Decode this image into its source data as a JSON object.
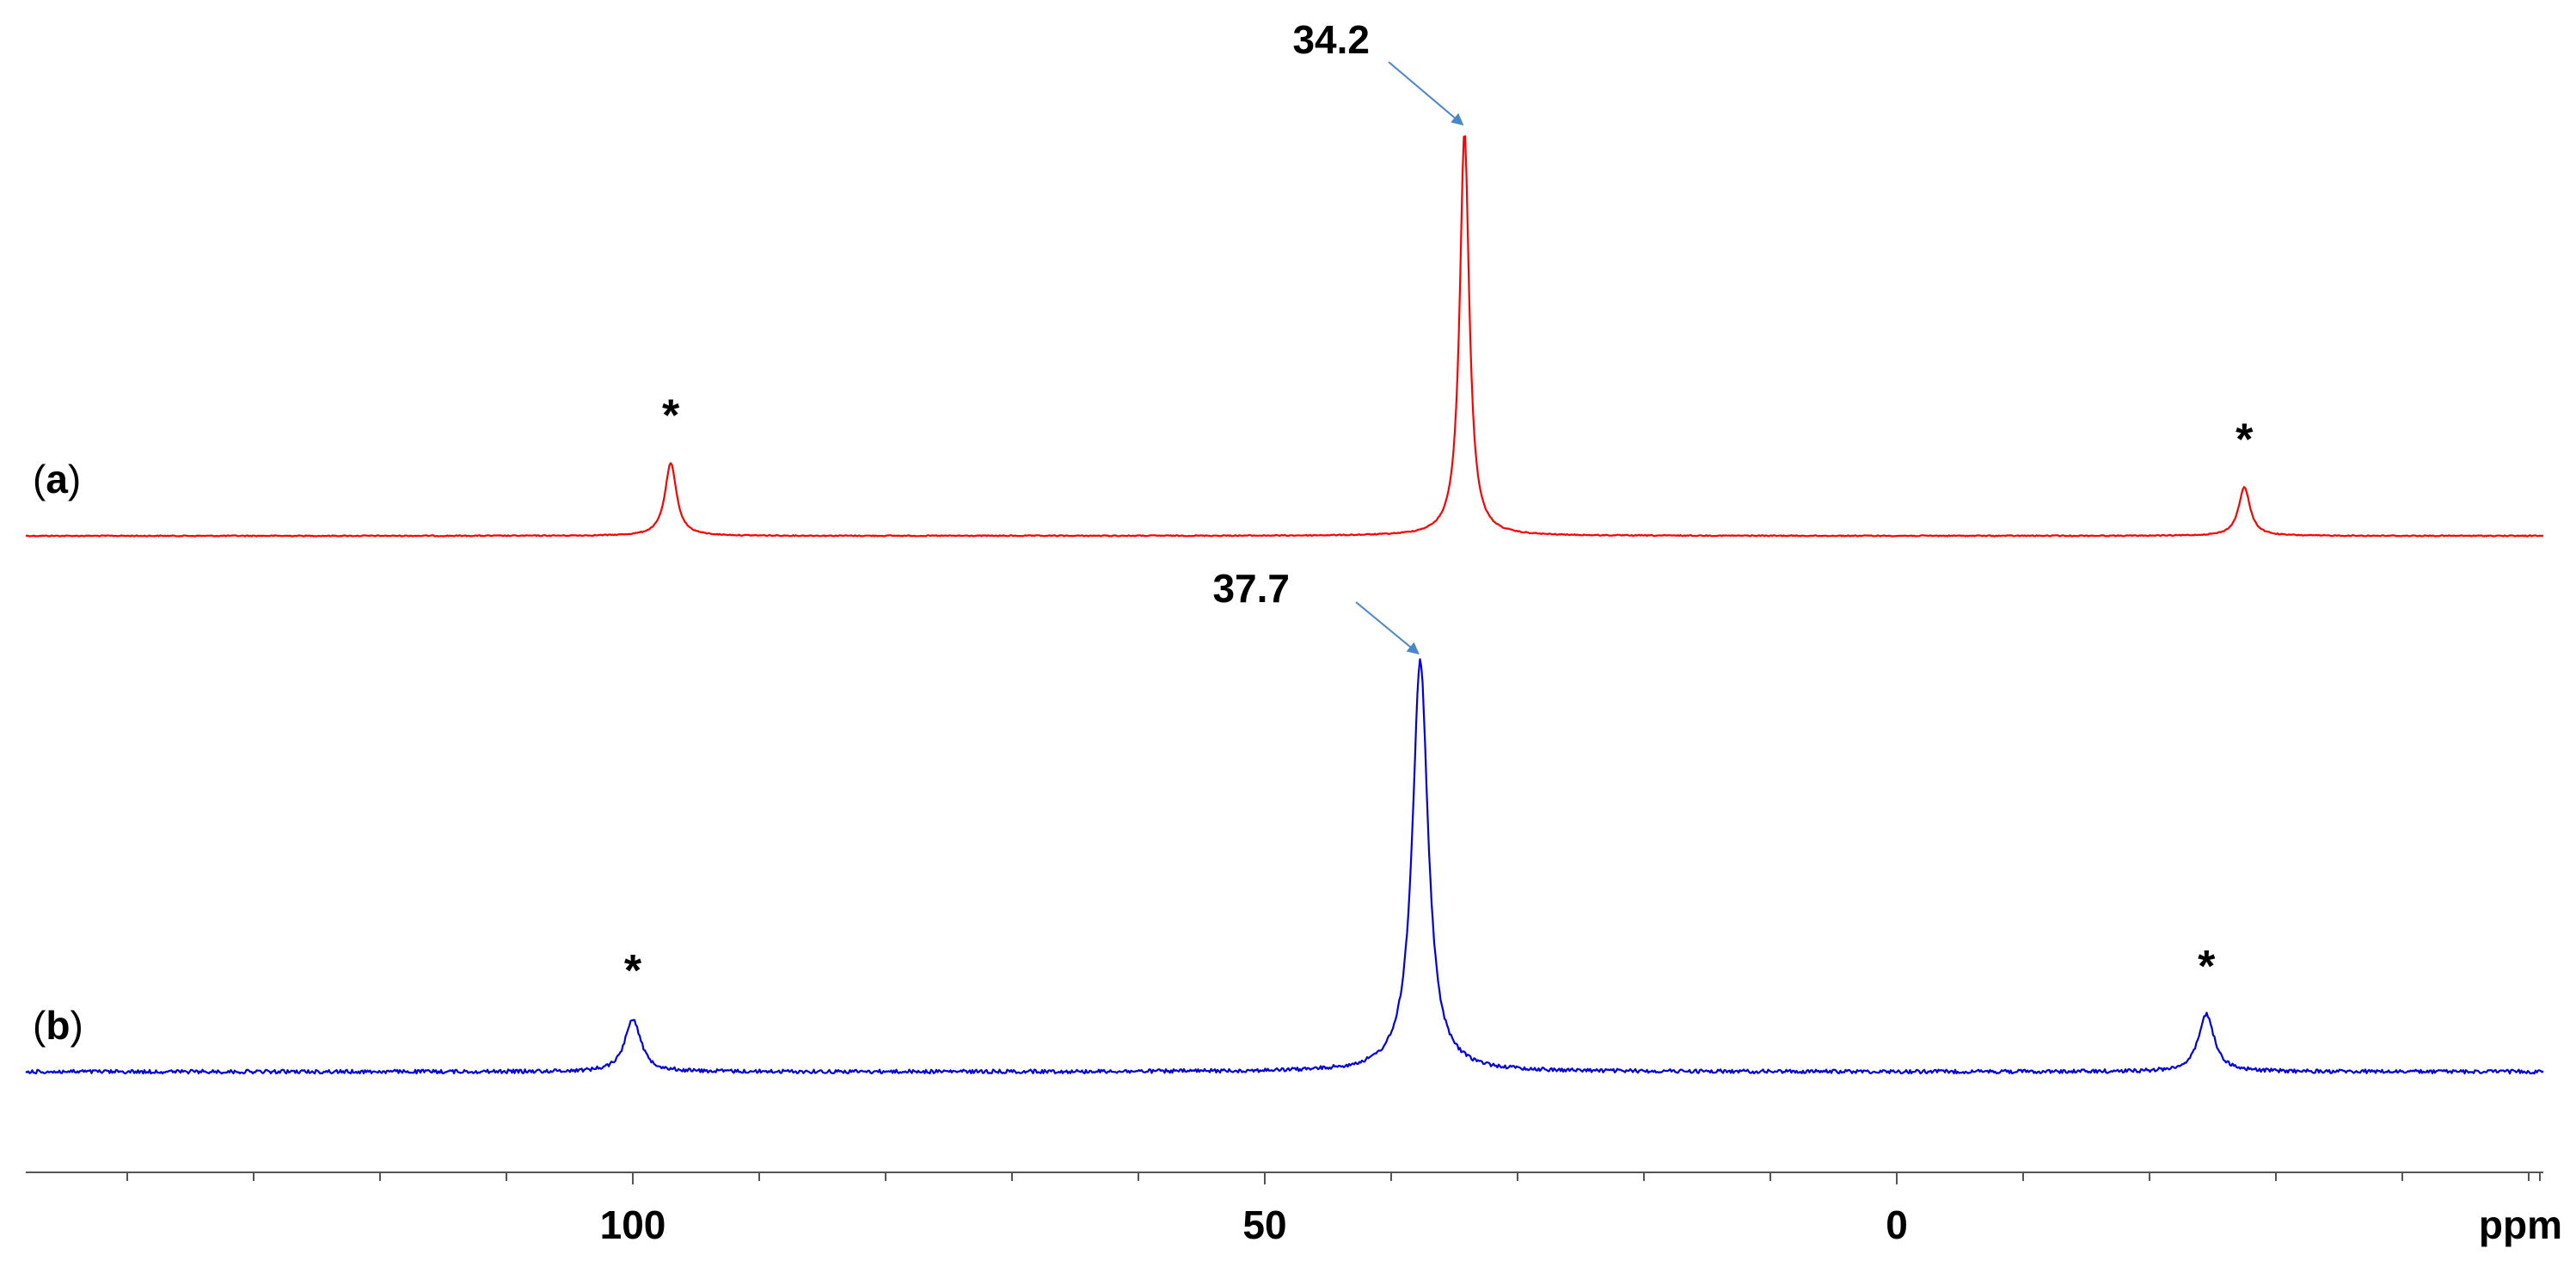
{
  "chart_data": {
    "type": "line",
    "title": "",
    "xlabel": "ppm",
    "ylabel": "",
    "x_reversed": true,
    "xlim": [
      147,
      -50
    ],
    "major_ticks": [
      100,
      50,
      0
    ],
    "major_tick_labels": [
      "100",
      "50",
      "0"
    ],
    "minor_tick_step": 10,
    "grid": false,
    "colors": {
      "a": "#ff0000",
      "b": "#0000dd",
      "arrow": "#4a86c8",
      "axis": "#555555"
    },
    "series": [
      {
        "key": "a",
        "label_open": "(",
        "label_letter": "a",
        "label_close": ")",
        "peaks": [
          {
            "ppm": 34.2,
            "height": 1.0,
            "width": 0.45,
            "label": "34.2"
          },
          {
            "ppm": 97.0,
            "height": 0.18,
            "width": 0.55,
            "label": "*"
          },
          {
            "ppm": -27.5,
            "height": 0.12,
            "width": 0.55,
            "label": "*"
          }
        ]
      },
      {
        "key": "b",
        "label_open": "(",
        "label_letter": "b",
        "label_close": ")",
        "peaks": [
          {
            "ppm": 37.7,
            "height": 1.0,
            "width": 0.75,
            "label": "37.7"
          },
          {
            "ppm": 100.0,
            "height": 0.13,
            "width": 0.75,
            "label": "*"
          },
          {
            "ppm": -24.5,
            "height": 0.14,
            "width": 0.75,
            "label": "*"
          }
        ]
      }
    ]
  }
}
